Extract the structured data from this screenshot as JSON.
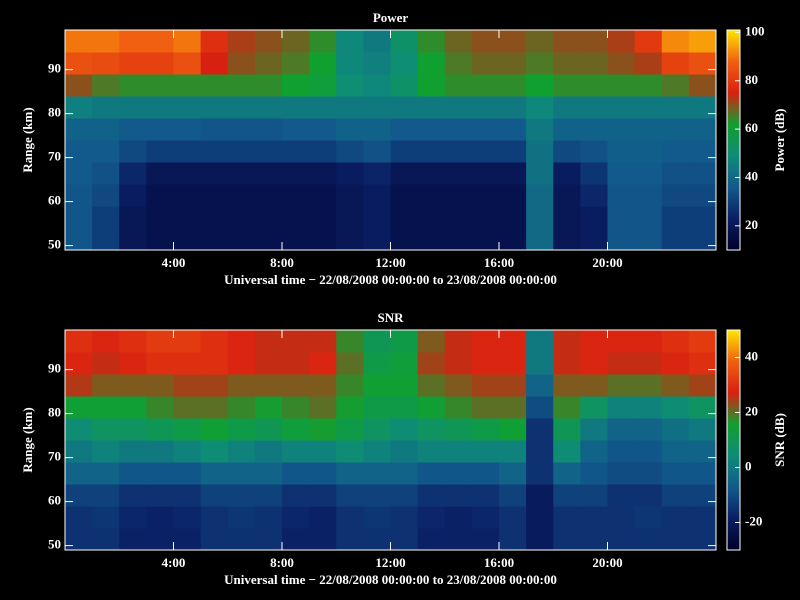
{
  "chart_data": [
    {
      "type": "heatmap",
      "title": "Power",
      "xlabel": "Universal time − 22/08/2008 00:00:00 to 23/08/2008 00:00:00",
      "ylabel": "Range (km)",
      "colorbar_label": "Power (dB)",
      "xlim": [
        0,
        24
      ],
      "ylim": [
        49,
        99
      ],
      "clim": [
        10,
        101
      ],
      "xticks": [
        {
          "value": 4,
          "label": "4:00"
        },
        {
          "value": 8,
          "label": "8:00"
        },
        {
          "value": 12,
          "label": "12:00"
        },
        {
          "value": 16,
          "label": "16:00"
        },
        {
          "value": 20,
          "label": "20:00"
        }
      ],
      "yticks": [
        50,
        60,
        70,
        80,
        90
      ],
      "cticks": [
        20,
        40,
        60,
        80,
        100
      ],
      "colormap": [
        "#000028",
        "#0a1e64",
        "#125a8c",
        "#0e8c78",
        "#10a030",
        "#d82010",
        "#f06010",
        "#ffe600"
      ],
      "x_edges": [
        0,
        1,
        2,
        3,
        4,
        5,
        6,
        7,
        8,
        9,
        10,
        11,
        12,
        13,
        14,
        15,
        16,
        17,
        18,
        19,
        20,
        21,
        22,
        23,
        24
      ],
      "y_edges": [
        49,
        54,
        59,
        64,
        69,
        74,
        79,
        84,
        89,
        94,
        99
      ],
      "z": [
        [
          35,
          30,
          20,
          18,
          18,
          18,
          18,
          18,
          18,
          18,
          20,
          22,
          18,
          18,
          18,
          18,
          18,
          40,
          20,
          22,
          35,
          35,
          30,
          30
        ],
        [
          35,
          30,
          20,
          18,
          18,
          18,
          18,
          18,
          18,
          18,
          20,
          22,
          18,
          18,
          18,
          18,
          18,
          40,
          20,
          22,
          35,
          35,
          30,
          30
        ],
        [
          35,
          32,
          22,
          18,
          18,
          18,
          18,
          18,
          18,
          18,
          20,
          22,
          18,
          18,
          18,
          18,
          18,
          40,
          20,
          25,
          35,
          35,
          32,
          32
        ],
        [
          36,
          34,
          25,
          20,
          20,
          20,
          20,
          20,
          20,
          20,
          22,
          24,
          20,
          20,
          20,
          20,
          20,
          42,
          22,
          28,
          36,
          36,
          34,
          34
        ],
        [
          36,
          36,
          32,
          30,
          30,
          30,
          30,
          30,
          30,
          30,
          32,
          34,
          30,
          30,
          30,
          30,
          30,
          42,
          32,
          34,
          37,
          37,
          36,
          36
        ],
        [
          38,
          38,
          36,
          36,
          36,
          35,
          35,
          35,
          36,
          36,
          38,
          38,
          36,
          36,
          36,
          36,
          36,
          44,
          38,
          38,
          38,
          38,
          38,
          38
        ],
        [
          46,
          44,
          44,
          44,
          44,
          44,
          44,
          44,
          44,
          44,
          44,
          44,
          44,
          44,
          44,
          44,
          44,
          48,
          44,
          44,
          44,
          44,
          44,
          44
        ],
        [
          70,
          66,
          64,
          64,
          64,
          64,
          64,
          64,
          62,
          60,
          50,
          48,
          52,
          62,
          64,
          64,
          64,
          62,
          64,
          64,
          64,
          64,
          66,
          70
        ],
        [
          85,
          84,
          82,
          82,
          85,
          75,
          70,
          68,
          66,
          62,
          48,
          46,
          50,
          62,
          66,
          68,
          68,
          66,
          68,
          68,
          70,
          72,
          82,
          85
        ],
        [
          90,
          90,
          88,
          88,
          90,
          78,
          72,
          70,
          68,
          64,
          48,
          44,
          52,
          64,
          68,
          70,
          70,
          68,
          70,
          70,
          72,
          80,
          92,
          94
        ]
      ]
    },
    {
      "type": "heatmap",
      "title": "SNR",
      "xlabel": "Universal time − 22/08/2008 00:00:00 to 23/08/2008 00:00:00",
      "ylabel": "Range (km)",
      "colorbar_label": "SNR (dB)",
      "xlim": [
        0,
        24
      ],
      "ylim": [
        49,
        99
      ],
      "clim": [
        -30,
        50
      ],
      "xticks": [
        {
          "value": 4,
          "label": "4:00"
        },
        {
          "value": 8,
          "label": "8:00"
        },
        {
          "value": 12,
          "label": "12:00"
        },
        {
          "value": 16,
          "label": "16:00"
        },
        {
          "value": 20,
          "label": "20:00"
        }
      ],
      "yticks": [
        50,
        60,
        70,
        80,
        90
      ],
      "cticks": [
        -20,
        0,
        20,
        40
      ],
      "colormap": [
        "#000028",
        "#0a1e64",
        "#125a8c",
        "#0e8c78",
        "#10a030",
        "#d82010",
        "#f06010",
        "#ffe600"
      ],
      "x_edges": [
        0,
        1,
        2,
        3,
        4,
        5,
        6,
        7,
        8,
        9,
        10,
        11,
        12,
        13,
        14,
        15,
        16,
        17,
        18,
        19,
        20,
        21,
        22,
        23,
        24
      ],
      "y_edges": [
        49,
        54,
        59,
        64,
        69,
        74,
        79,
        84,
        89,
        94,
        99
      ],
      "z": [
        [
          -15,
          -15,
          -18,
          -18,
          -18,
          -15,
          -15,
          -15,
          -18,
          -18,
          -15,
          -15,
          -15,
          -18,
          -18,
          -18,
          -15,
          -20,
          -15,
          -15,
          -15,
          -15,
          -15,
          -15
        ],
        [
          -15,
          -14,
          -17,
          -18,
          -17,
          -15,
          -14,
          -15,
          -17,
          -18,
          -15,
          -14,
          -15,
          -17,
          -18,
          -17,
          -15,
          -20,
          -15,
          -15,
          -15,
          -14,
          -15,
          -15
        ],
        [
          -12,
          -12,
          -15,
          -15,
          -15,
          -12,
          -12,
          -12,
          -15,
          -15,
          -12,
          -12,
          -12,
          -15,
          -15,
          -15,
          -12,
          -20,
          -12,
          -12,
          -15,
          -15,
          -12,
          -12
        ],
        [
          -5,
          -5,
          -8,
          -8,
          -8,
          -5,
          -5,
          -5,
          -8,
          -8,
          -5,
          -5,
          -5,
          -8,
          -8,
          -8,
          -5,
          -15,
          -5,
          -8,
          -10,
          -10,
          -8,
          -8
        ],
        [
          0,
          2,
          0,
          0,
          2,
          5,
          2,
          0,
          2,
          2,
          5,
          2,
          0,
          2,
          2,
          2,
          2,
          -15,
          5,
          -5,
          -8,
          -8,
          -5,
          -5
        ],
        [
          5,
          8,
          8,
          10,
          12,
          15,
          12,
          10,
          14,
          16,
          12,
          8,
          5,
          8,
          10,
          12,
          15,
          -15,
          10,
          0,
          -5,
          -5,
          -2,
          0
        ],
        [
          15,
          15,
          15,
          18,
          20,
          20,
          18,
          16,
          18,
          20,
          16,
          12,
          12,
          15,
          18,
          20,
          20,
          -10,
          18,
          8,
          2,
          2,
          5,
          8
        ],
        [
          25,
          22,
          22,
          22,
          24,
          24,
          22,
          22,
          22,
          22,
          18,
          15,
          15,
          20,
          22,
          24,
          24,
          -5,
          22,
          22,
          20,
          20,
          22,
          24
        ],
        [
          28,
          26,
          28,
          30,
          30,
          30,
          28,
          26,
          26,
          28,
          20,
          12,
          14,
          24,
          26,
          28,
          28,
          0,
          26,
          28,
          26,
          26,
          28,
          30
        ],
        [
          30,
          28,
          30,
          32,
          32,
          30,
          28,
          26,
          26,
          26,
          18,
          10,
          12,
          22,
          26,
          28,
          28,
          0,
          26,
          28,
          28,
          28,
          30,
          32
        ]
      ]
    }
  ]
}
